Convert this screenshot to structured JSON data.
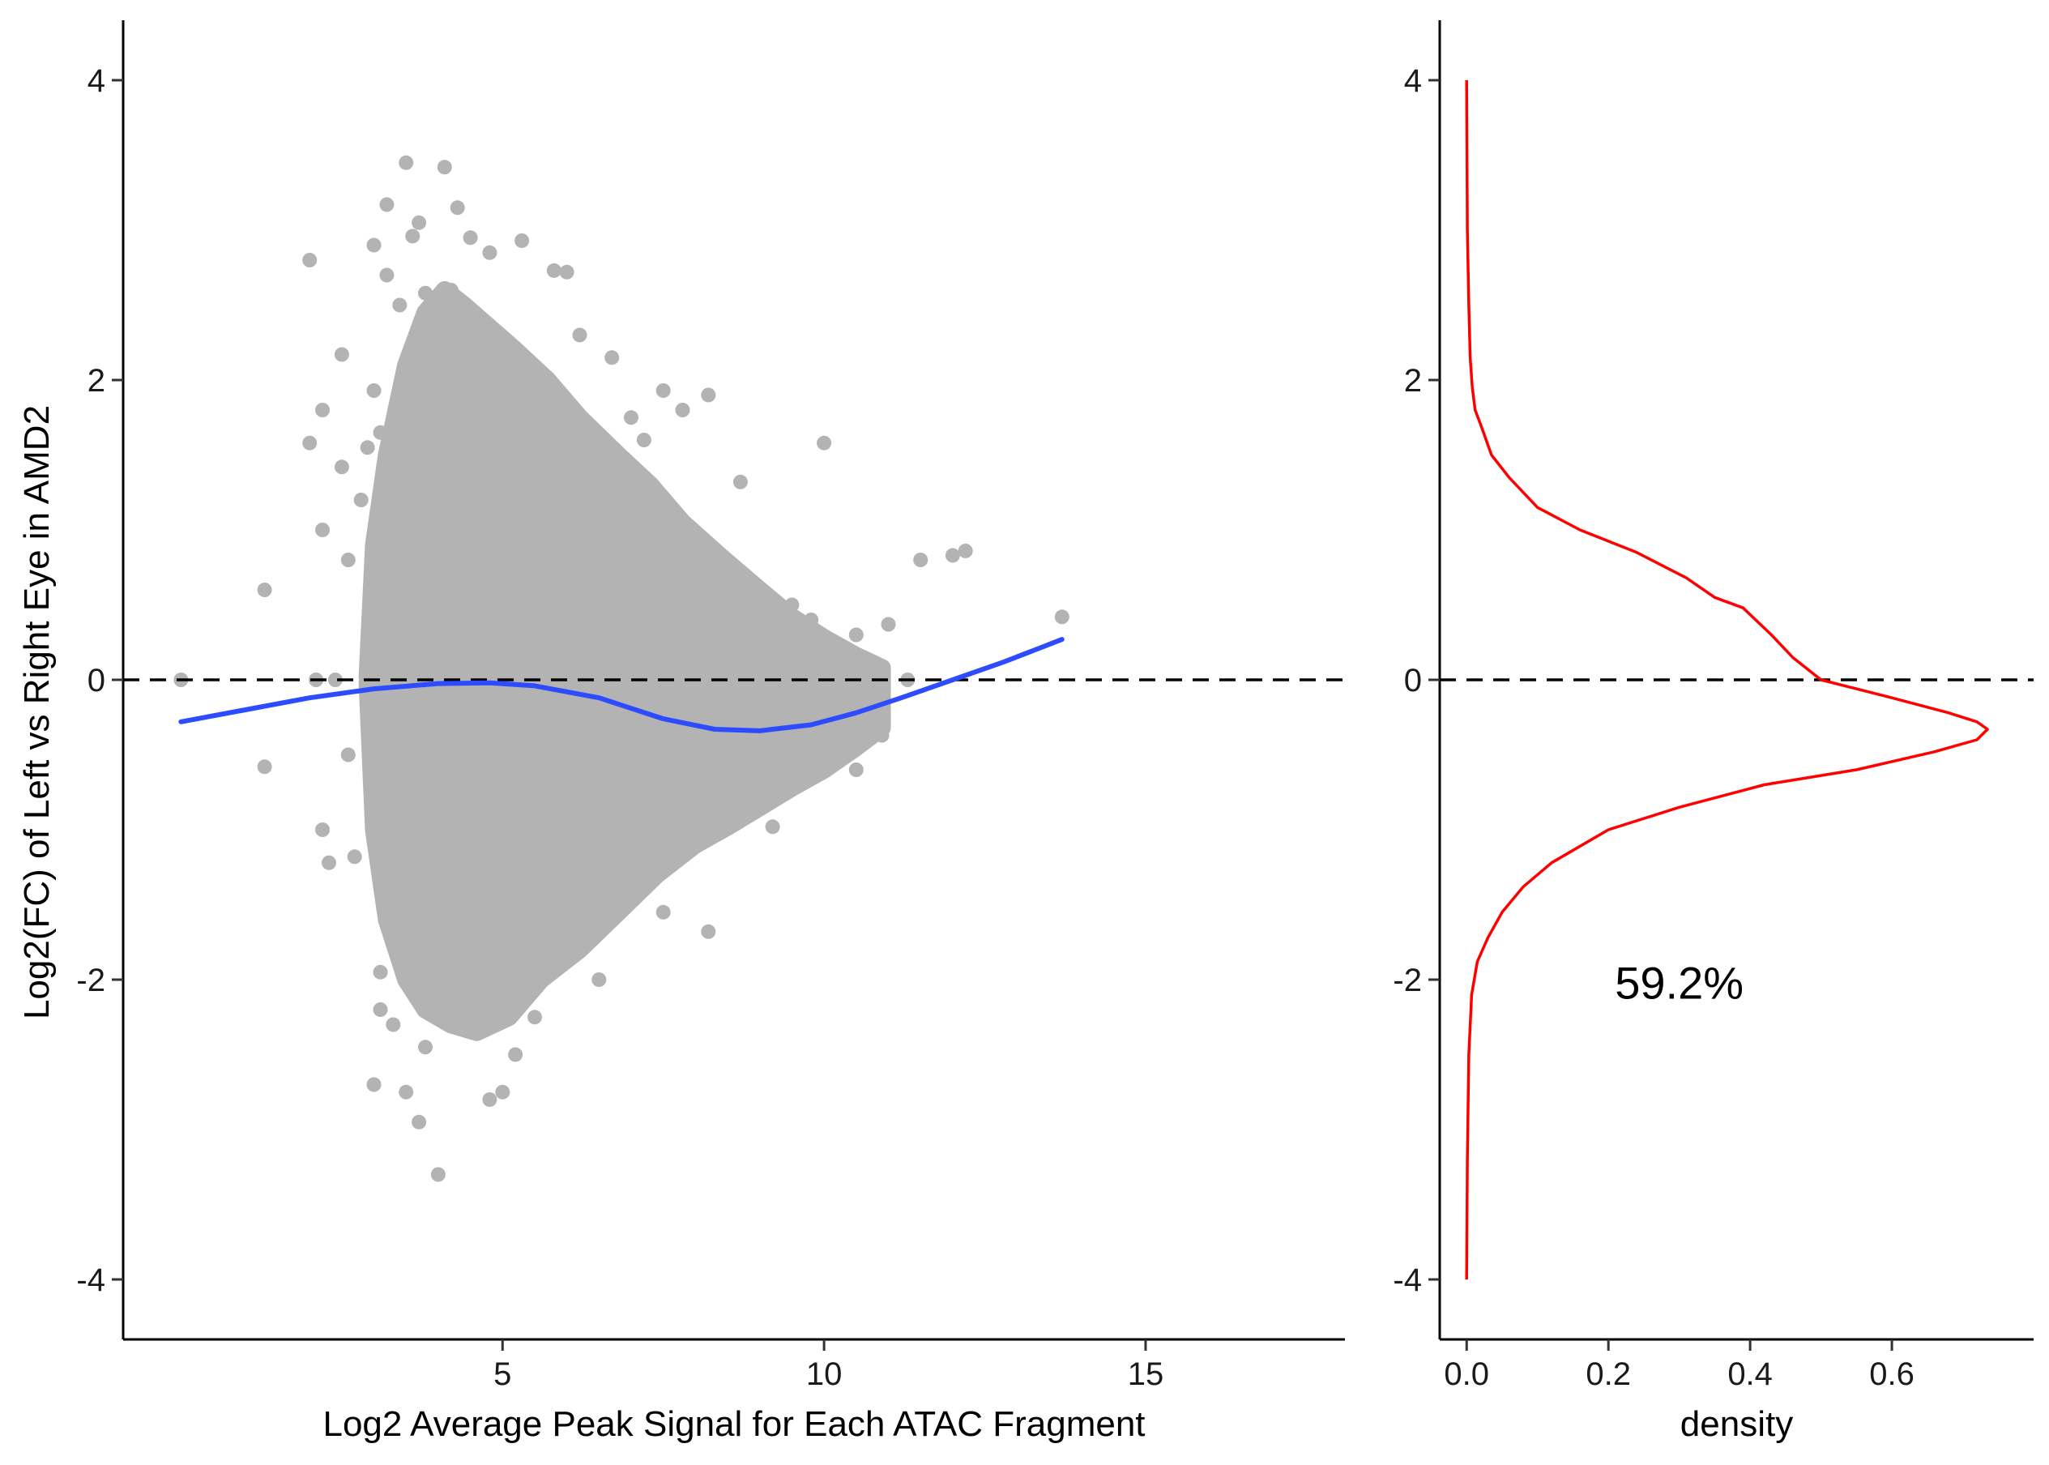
{
  "chart_data": [
    {
      "type": "scatter",
      "xlabel": "Log2 Average Peak Signal for Each ATAC Fragment",
      "ylabel": "Log2(FC) of Left vs Right Eye in  AMD2",
      "xlim": [
        -0.9,
        18.1
      ],
      "ylim": [
        -4.4,
        4.4
      ],
      "xticks": [
        5,
        10,
        15
      ],
      "yticks": [
        -4,
        -2,
        0,
        2,
        4
      ],
      "grid": false,
      "point_color": "#b3b3b3",
      "points": [
        [
          0,
          0
        ],
        [
          1.3,
          0.6
        ],
        [
          1.3,
          -0.58
        ],
        [
          2,
          2.8
        ],
        [
          2,
          1.58
        ],
        [
          2.2,
          1.8
        ],
        [
          2.2,
          1.0
        ],
        [
          2.1,
          0
        ],
        [
          2.2,
          -1.0
        ],
        [
          2.3,
          -1.22
        ],
        [
          2.5,
          2.17
        ],
        [
          2.5,
          1.42
        ],
        [
          2.6,
          0.8
        ],
        [
          2.4,
          0
        ],
        [
          2.6,
          -0.5
        ],
        [
          2.7,
          -1.18
        ],
        [
          3.0,
          2.9
        ],
        [
          3.2,
          3.17
        ],
        [
          3.5,
          3.45
        ],
        [
          3.6,
          2.96
        ],
        [
          3.7,
          3.05
        ],
        [
          4.1,
          3.42
        ],
        [
          4.3,
          3.15
        ],
        [
          4.5,
          2.95
        ],
        [
          4.8,
          2.85
        ],
        [
          5.3,
          2.93
        ],
        [
          5.8,
          2.73
        ],
        [
          6.0,
          2.72
        ],
        [
          7.5,
          1.93
        ],
        [
          8.2,
          1.9
        ],
        [
          7.8,
          1.8
        ],
        [
          8.7,
          1.32
        ],
        [
          10.0,
          1.58
        ],
        [
          11.5,
          0.8
        ],
        [
          12.0,
          0.83
        ],
        [
          12.2,
          0.86
        ],
        [
          13.7,
          0.42
        ],
        [
          11.0,
          0.37
        ],
        [
          10.5,
          0.3
        ],
        [
          11.3,
          0
        ],
        [
          3.0,
          -2.7
        ],
        [
          3.5,
          -2.75
        ],
        [
          3.7,
          -2.95
        ],
        [
          4.0,
          -3.3
        ],
        [
          4.8,
          -2.8
        ],
        [
          5.0,
          -2.75
        ],
        [
          5.2,
          -2.5
        ],
        [
          8.2,
          -1.68
        ],
        [
          7.5,
          -1.55
        ],
        [
          9.2,
          -0.98
        ],
        [
          10.5,
          -0.6
        ],
        [
          10.9,
          -0.37
        ],
        [
          3.1,
          -1.95
        ],
        [
          3.1,
          -2.2
        ],
        [
          3.3,
          -2.3
        ],
        [
          3.8,
          -2.45
        ],
        [
          5.5,
          -2.25
        ],
        [
          6.5,
          -2.0
        ],
        [
          3.2,
          2.7
        ],
        [
          3.4,
          2.5
        ],
        [
          3.8,
          2.58
        ],
        [
          4.2,
          2.6
        ],
        [
          6.2,
          2.3
        ],
        [
          6.7,
          2.15
        ],
        [
          7.0,
          1.75
        ],
        [
          7.2,
          1.6
        ],
        [
          3.0,
          1.93
        ],
        [
          3.1,
          1.65
        ],
        [
          2.8,
          1.2
        ],
        [
          2.9,
          1.55
        ],
        [
          6.0,
          1.0
        ],
        [
          8.0,
          0.55
        ],
        [
          9.5,
          0.5
        ],
        [
          5.0,
          -1.5
        ],
        [
          6.0,
          -1.2
        ],
        [
          7.0,
          -1.0
        ],
        [
          4.0,
          1.5
        ],
        [
          4.5,
          -1.8
        ],
        [
          9.8,
          0.4
        ],
        [
          9.9,
          -0.5
        ]
      ],
      "cloud_shapes": [
        {
          "name": "upper",
          "x": [
            2.9,
            3.0,
            3.2,
            3.5,
            3.8,
            4.1,
            4.4,
            4.8,
            5.2,
            5.7,
            6.2,
            6.8,
            7.3,
            7.8,
            8.4,
            9.0,
            9.5,
            10.0,
            10.5,
            10.9,
            10.9,
            9.0,
            7.0,
            5.0,
            3.5,
            2.9
          ],
          "y": [
            0.02,
            0.9,
            1.5,
            2.1,
            2.45,
            2.6,
            2.5,
            2.35,
            2.2,
            2.0,
            1.75,
            1.5,
            1.3,
            1.05,
            0.82,
            0.6,
            0.42,
            0.28,
            0.16,
            0.08,
            0.0,
            0.0,
            0.0,
            0.0,
            0.0,
            0.02
          ]
        },
        {
          "name": "lower",
          "x": [
            2.9,
            3.5,
            5.0,
            7.0,
            9.0,
            10.9,
            10.9,
            10.5,
            10.0,
            9.5,
            9.0,
            8.5,
            8.0,
            7.4,
            6.8,
            6.2,
            5.6,
            5.1,
            4.6,
            4.2,
            3.8,
            3.5,
            3.2,
            3.0,
            2.9
          ],
          "y": [
            -0.02,
            0.0,
            0.0,
            0.0,
            0.0,
            0.0,
            -0.32,
            -0.45,
            -0.6,
            -0.72,
            -0.85,
            -0.98,
            -1.1,
            -1.3,
            -1.55,
            -1.8,
            -2.0,
            -2.25,
            -2.35,
            -2.3,
            -2.2,
            -2.0,
            -1.6,
            -1.0,
            -0.02
          ]
        }
      ],
      "trend_line": {
        "color": "#2d4bff",
        "x": [
          0,
          1,
          2,
          3,
          4,
          4.8,
          5.5,
          6.5,
          7.5,
          8.3,
          9.0,
          9.8,
          10.5,
          11.2,
          12.0,
          12.8,
          13.7
        ],
        "y": [
          -0.28,
          -0.2,
          -0.12,
          -0.06,
          -0.025,
          -0.02,
          -0.04,
          -0.12,
          -0.26,
          -0.33,
          -0.34,
          -0.3,
          -0.22,
          -0.12,
          0.0,
          0.12,
          0.27
        ]
      },
      "reference_line": {
        "y": 0,
        "style": "dashed",
        "color": "#000000"
      }
    },
    {
      "type": "line",
      "xlabel": "density",
      "ylabel": "",
      "xlim": [
        -0.038,
        0.8
      ],
      "ylim": [
        -4.4,
        4.4
      ],
      "xticks": [
        0.0,
        0.2,
        0.4,
        0.6
      ],
      "xtick_labels": [
        "0.0",
        "0.2",
        "0.4",
        "0.6"
      ],
      "yticks": [
        -4,
        -2,
        0,
        2,
        4
      ],
      "grid": false,
      "series": [
        {
          "color": "#ff0000",
          "x": [
            0.0,
            0.001,
            0.003,
            0.005,
            0.008,
            0.012,
            0.02,
            0.035,
            0.06,
            0.1,
            0.16,
            0.24,
            0.31,
            0.35,
            0.39,
            0.43,
            0.46,
            0.5,
            0.6,
            0.68,
            0.72,
            0.735,
            0.72,
            0.66,
            0.55,
            0.42,
            0.3,
            0.2,
            0.12,
            0.08,
            0.05,
            0.03,
            0.015,
            0.007,
            0.003,
            0.001,
            0.0
          ],
          "y": [
            4.0,
            3.0,
            2.5,
            2.15,
            1.95,
            1.8,
            1.7,
            1.5,
            1.35,
            1.15,
            1.0,
            0.85,
            0.68,
            0.55,
            0.48,
            0.3,
            0.15,
            0.0,
            -0.12,
            -0.22,
            -0.28,
            -0.33,
            -0.4,
            -0.48,
            -0.6,
            -0.7,
            -0.85,
            -1.0,
            -1.22,
            -1.38,
            -1.55,
            -1.72,
            -1.88,
            -2.1,
            -2.5,
            -3.2,
            -4.0
          ]
        }
      ],
      "reference_line": {
        "y": 0,
        "style": "dashed",
        "color": "#000000"
      },
      "annotation": {
        "text": "59.2%",
        "x": 0.3,
        "y": -2.02
      }
    }
  ]
}
